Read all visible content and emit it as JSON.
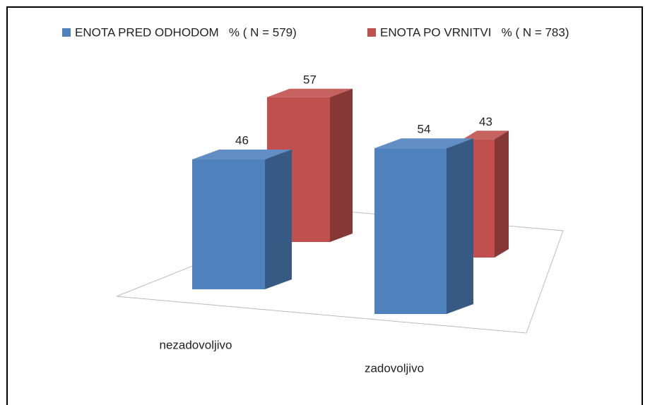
{
  "chart_data": {
    "type": "bar3d",
    "categories": [
      "nezadovoljivo",
      "zadovoljivo"
    ],
    "series": [
      {
        "name": "ENOTA PRED ODHODOM   % ( N = 579)",
        "color": "#4f81bd",
        "values": [
          46,
          54
        ]
      },
      {
        "name": "ENOTA PO VRNITVI   % ( N = 783)",
        "color": "#c0504d",
        "values": [
          57,
          43
        ]
      }
    ],
    "legend": "top"
  }
}
